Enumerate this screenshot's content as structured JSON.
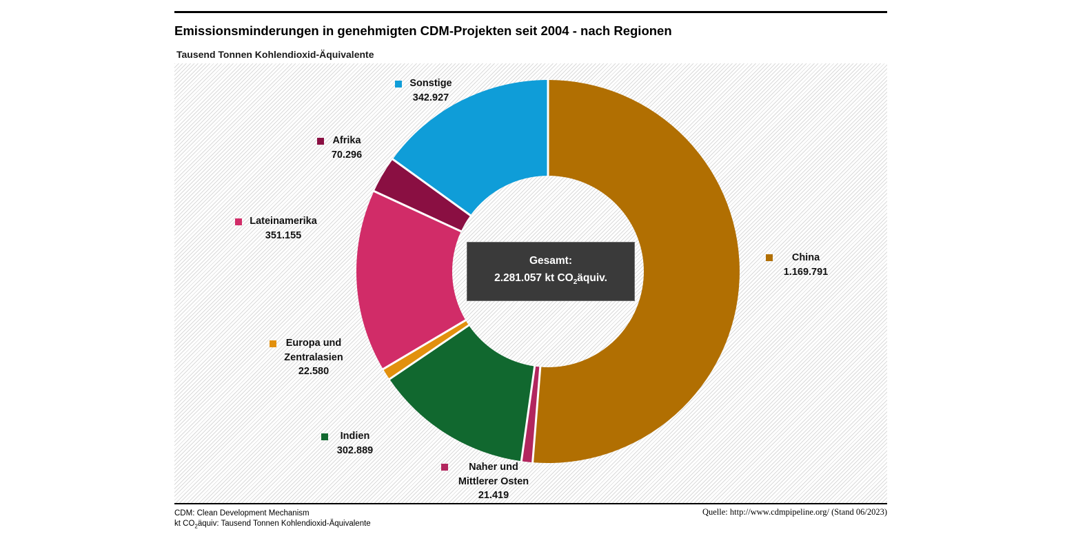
{
  "header": {
    "title": "Emissionsminderungen in genehmigten CDM-Projekten seit 2004 - nach Regionen",
    "subtitle": "Tausend Tonnen Kohlendioxid-Äquivalente"
  },
  "chart_data": {
    "type": "pie",
    "variant": "donut",
    "title": "Emissionsminderungen in genehmigten CDM-Projekten seit 2004 - nach Regionen",
    "unit_label": "Tausend Tonnen Kohlendioxid-Äquivalente",
    "total_value": 2281057,
    "start_angle_deg": 0,
    "direction": "clockwise",
    "legend_position": "around-slices",
    "slices": [
      {
        "id": "china",
        "label_lines": [
          "China"
        ],
        "value": 1169791,
        "value_display": "1.169.791",
        "color": "#b16f02",
        "marker": [
          858,
          277
        ],
        "text": [
          916,
          272
        ]
      },
      {
        "id": "naher-und-mittlerer-osten",
        "label_lines": [
          "Naher und",
          "Mittlerer Osten"
        ],
        "value": 21419,
        "value_display": "21.419",
        "color": "#b2265e",
        "marker": [
          387,
          581
        ],
        "text": [
          463,
          576
        ]
      },
      {
        "id": "indien",
        "label_lines": [
          "Indien"
        ],
        "value": 302889,
        "value_display": "302.889",
        "color": "#11682f",
        "marker": [
          213,
          537
        ],
        "text": [
          262,
          531
        ]
      },
      {
        "id": "europa-und-zentralasien",
        "label_lines": [
          "Europa und",
          "Zentralasien"
        ],
        "value": 22580,
        "value_display": "22.580",
        "color": "#e2900d",
        "marker": [
          138,
          402
        ],
        "text": [
          202,
          396
        ]
      },
      {
        "id": "lateinamerika",
        "label_lines": [
          "Lateinamerika"
        ],
        "value": 351155,
        "value_display": "351.155",
        "color": "#d12c68",
        "marker": [
          88,
          225
        ],
        "text": [
          158,
          219
        ]
      },
      {
        "id": "afrika",
        "label_lines": [
          "Afrika"
        ],
        "value": 70296,
        "value_display": "70.296",
        "color": "#8a0f42",
        "marker": [
          207,
          108
        ],
        "text": [
          250,
          102
        ]
      },
      {
        "id": "sonstige",
        "label_lines": [
          "Sonstige"
        ],
        "value": 342927,
        "value_display": "342.927",
        "color": "#0f9dd8",
        "marker": [
          320,
          25
        ],
        "text": [
          372,
          19
        ]
      }
    ],
    "geometry": {
      "center": [
        542,
        302
      ],
      "outer_radius": 278,
      "inner_radius": 139,
      "separator_color": "#ffffff",
      "separator_width": 3
    },
    "center_box": {
      "line1": "Gesamt:",
      "line2_pre": "2.281.057 kt CO",
      "line2_sub": "2",
      "line2_post": "äquiv."
    }
  },
  "footer": {
    "note1": "CDM: Clean Development Mechanism",
    "note2_pre": "kt CO",
    "note2_sub": "2",
    "note2_post": "äquiv: Tausend Tonnen Kohlendioxid-Äquivalente",
    "source": "Quelle: http://www.cdmpipeline.org/ (Stand 06/2023)"
  }
}
